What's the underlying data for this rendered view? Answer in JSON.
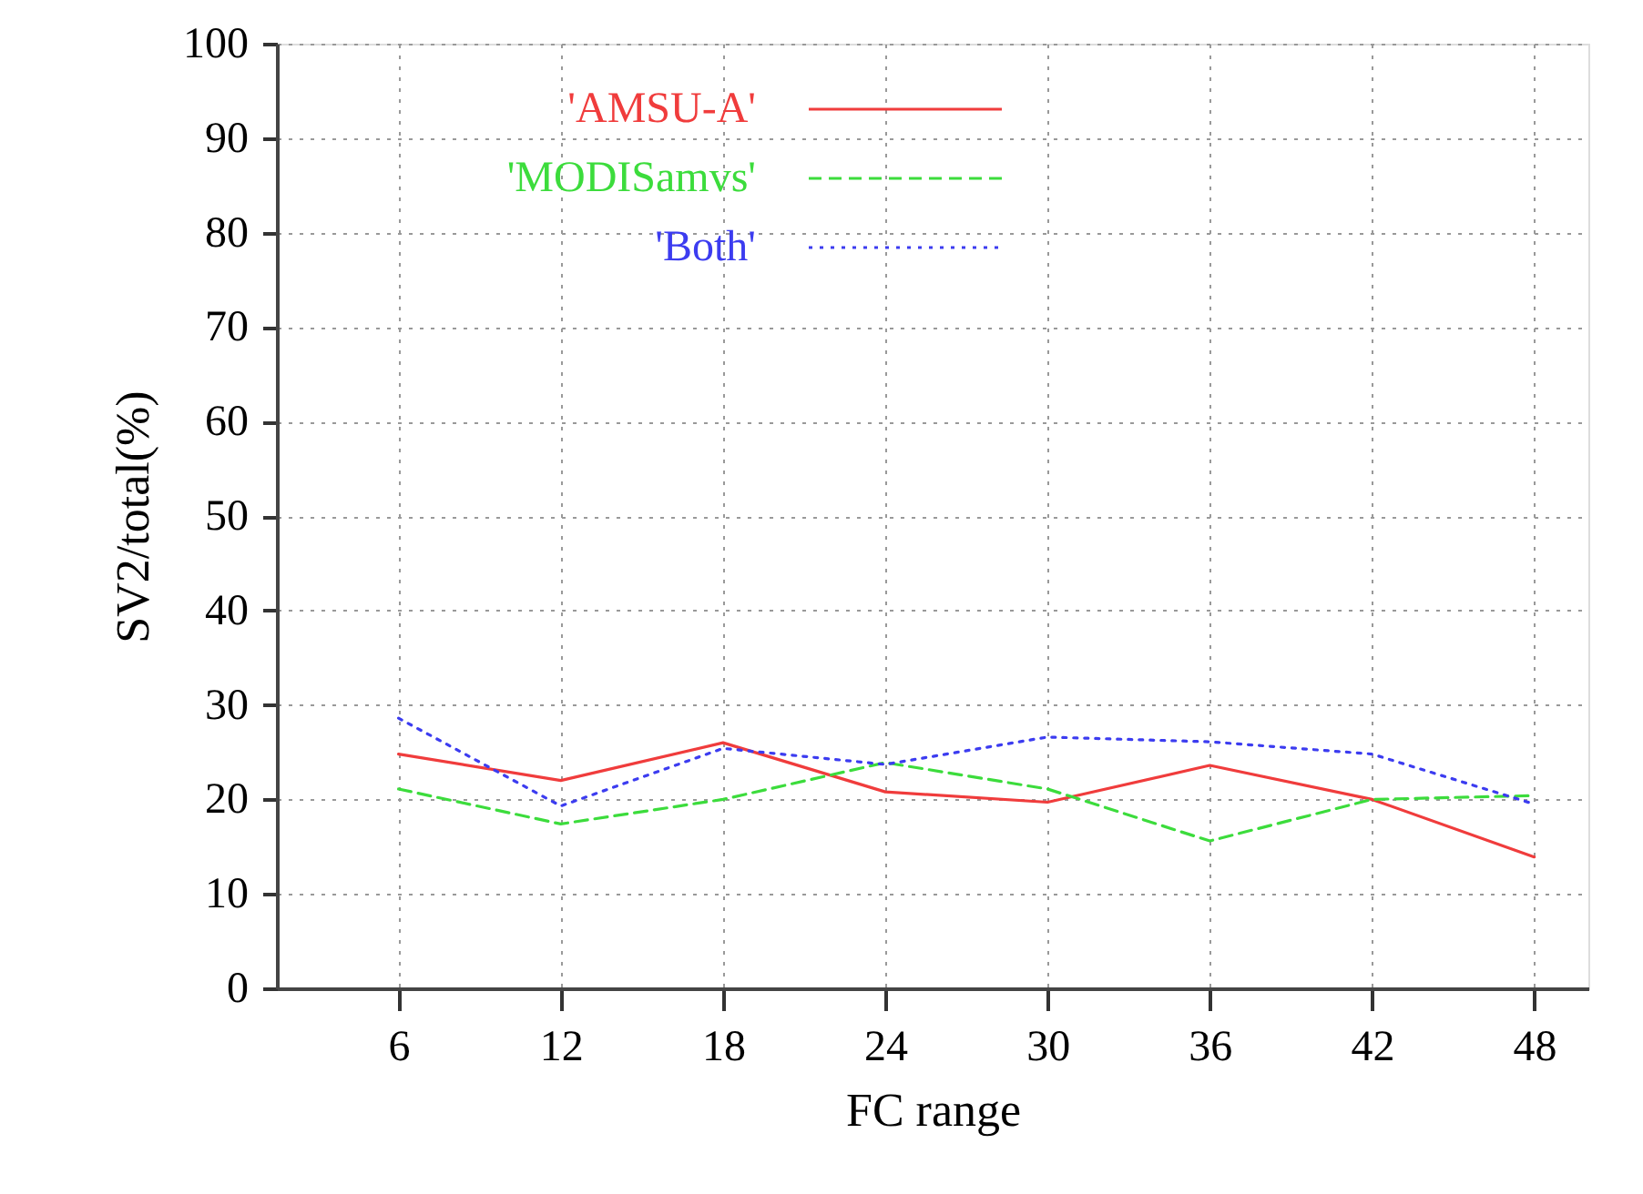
{
  "chart_data": {
    "type": "line",
    "xlabel": "FC range",
    "ylabel": "SV2/total(%)",
    "x": [
      6,
      12,
      18,
      24,
      30,
      36,
      42,
      48
    ],
    "series": [
      {
        "name": "'AMSU-A'",
        "color": "#f03c3c",
        "line_style": "solid",
        "values": [
          24.8,
          22,
          26,
          20.8,
          19.7,
          23.6,
          20,
          13.9
        ]
      },
      {
        "name": "'MODISamvs'",
        "color": "#3cdc3c",
        "line_style": "dashed",
        "values": [
          21.1,
          17.4,
          20,
          23.9,
          21.1,
          15.6,
          20,
          20.4
        ]
      },
      {
        "name": "'Both'",
        "color": "#3c3cf0",
        "line_style": "dotted",
        "values": [
          28.6,
          19.3,
          25.4,
          23.7,
          26.6,
          26.1,
          24.8,
          19.5
        ]
      }
    ],
    "xlim": [
      1.5,
      50
    ],
    "xticks": [
      6,
      12,
      18,
      24,
      30,
      36,
      42,
      48
    ],
    "ylim": [
      0,
      100
    ],
    "yticks": [
      0,
      10,
      20,
      30,
      40,
      50,
      60,
      70,
      80,
      90,
      100
    ],
    "grid": true,
    "legend": "top left",
    "marker": "none"
  }
}
